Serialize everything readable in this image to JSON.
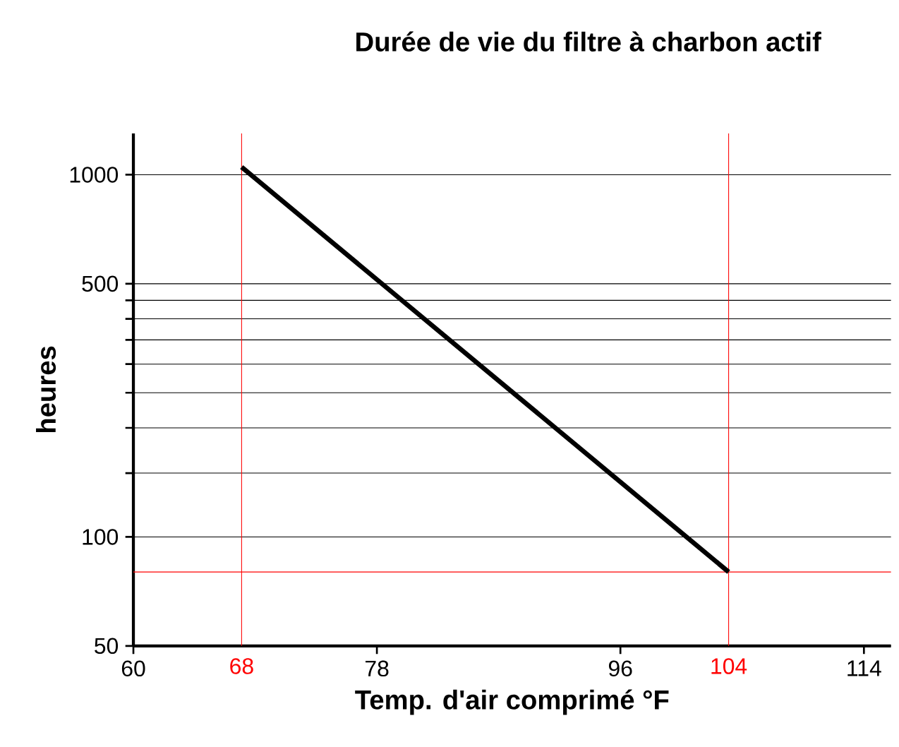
{
  "chart_data": {
    "type": "line",
    "title": "Durée de vie du filtre à charbon actif",
    "xlabel": "Temp. d'air comprimé °F",
    "ylabel": "heures",
    "x": [
      68,
      104
    ],
    "series": [
      {
        "color": "#000000",
        "values": [
          1050,
          80
        ]
      }
    ],
    "xlim": [
      60,
      116
    ],
    "xticks": [
      60,
      78,
      96,
      114
    ],
    "ylim": [
      50,
      1300
    ],
    "log": "y",
    "yticks": [
      50,
      100,
      {
        "value": 150,
        "label": null
      },
      {
        "value": 200,
        "label": null
      },
      {
        "value": 250,
        "label": null
      },
      {
        "value": 300,
        "label": null
      },
      {
        "value": 350,
        "label": null
      },
      {
        "value": 400,
        "label": null
      },
      {
        "value": 450,
        "label": null
      },
      500,
      1000
    ],
    "grid": "y",
    "marker": "none",
    "line_style": "solid",
    "ref_lines": [
      {
        "axis": "x",
        "value": 68,
        "label": "68",
        "color": "#ff0000"
      },
      {
        "axis": "x",
        "value": 104,
        "label": "104",
        "color": "#ff0000"
      },
      {
        "axis": "y",
        "value": 80,
        "color": "#ff0000"
      }
    ]
  }
}
